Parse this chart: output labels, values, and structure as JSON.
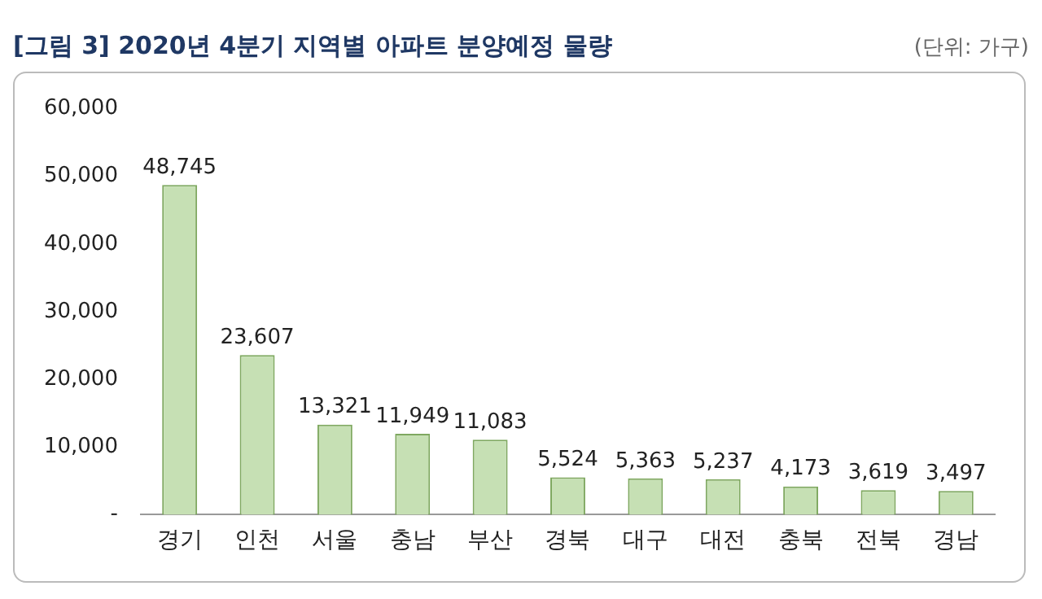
{
  "chart_data": {
    "type": "bar",
    "title": "[그림 3] 2020년 4분기 지역별 아파트 분양예정 물량",
    "subtitle": "(단위: 가구)",
    "categories": [
      "경기",
      "인천",
      "서울",
      "충남",
      "부산",
      "경북",
      "대구",
      "대전",
      "충북",
      "전북",
      "경남"
    ],
    "values": [
      48745,
      23607,
      13321,
      11949,
      11083,
      5524,
      5363,
      5237,
      4173,
      3619,
      3497
    ],
    "value_labels": [
      "48,745",
      "23,607",
      "13,321",
      "11,949",
      "11,083",
      "5,524",
      "5,363",
      "5,237",
      "4,173",
      "3,619",
      "3,497"
    ],
    "color": "#c6e0b4",
    "ylim": [
      0,
      60000
    ],
    "yticks": [
      {
        "value": 0,
        "label": "-"
      },
      {
        "value": 10000,
        "label": "10,000"
      },
      {
        "value": 20000,
        "label": "20,000"
      },
      {
        "value": 30000,
        "label": "30,000"
      },
      {
        "value": 40000,
        "label": "40,000"
      },
      {
        "value": 50000,
        "label": "50,000"
      },
      {
        "value": 60000,
        "label": "60,000"
      }
    ],
    "grid": false,
    "legend": false
  }
}
